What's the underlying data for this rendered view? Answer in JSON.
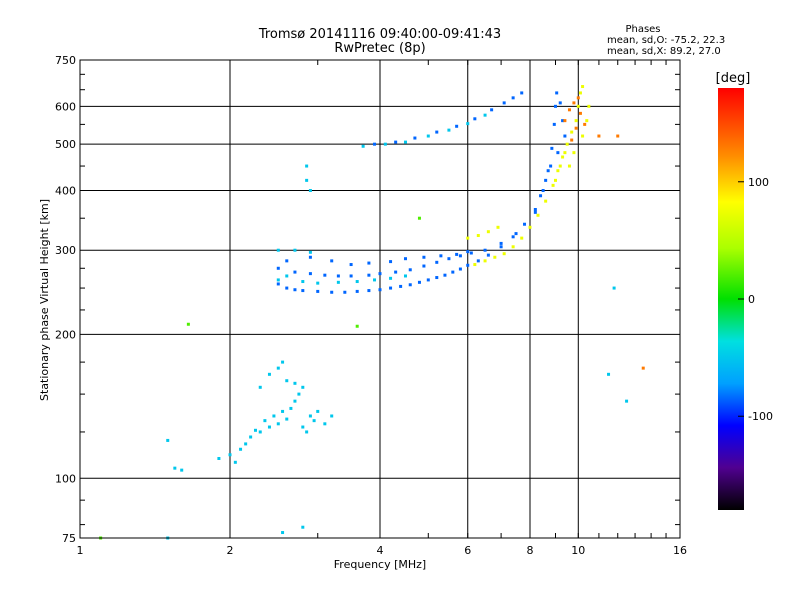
{
  "chart_data": {
    "type": "scatter",
    "title": "Tromsø 20141116 09:40:00-09:41:43",
    "subtitle": "RwPretec (8p)",
    "xlabel": "Frequency [MHz]",
    "ylabel": "Stationary phase Virtual Height [km]",
    "x_scale": "log",
    "y_scale": "log",
    "xlim": [
      1,
      16
    ],
    "ylim": [
      75,
      750
    ],
    "x_ticks": [
      1,
      2,
      4,
      6,
      8,
      10,
      16
    ],
    "x_tick_labels": [
      "1",
      "2",
      "4",
      "6",
      "8",
      "10",
      "16"
    ],
    "y_ticks": [
      75,
      100,
      200,
      300,
      400,
      500,
      600,
      750
    ],
    "y_tick_labels": [
      "75",
      "100",
      "200",
      "300",
      "400",
      "500",
      "600",
      "750"
    ],
    "grid": true,
    "phase_box": {
      "heading": "Phases",
      "line_o": "mean, sd,O: -75.2, 22.3",
      "line_x": "mean, sd,X:  89.2, 27.0"
    },
    "colorbar": {
      "label": "[deg]",
      "range": [
        -180,
        180
      ],
      "ticks": [
        100,
        0,
        -100
      ],
      "tick_labels": [
        "100",
        "0",
        "-100"
      ],
      "colormap": "rainbow"
    },
    "series": [
      {
        "phase_group": "O-mode",
        "color_value": -85,
        "points": [
          [
            2.5,
            255
          ],
          [
            2.6,
            250
          ],
          [
            2.7,
            248
          ],
          [
            2.8,
            247
          ],
          [
            3.0,
            246
          ],
          [
            3.2,
            245
          ],
          [
            3.4,
            245
          ],
          [
            3.6,
            246
          ],
          [
            3.8,
            247
          ],
          [
            4.0,
            248
          ],
          [
            4.2,
            250
          ],
          [
            4.4,
            252
          ],
          [
            4.6,
            254
          ],
          [
            4.8,
            257
          ],
          [
            5.0,
            260
          ],
          [
            5.2,
            263
          ],
          [
            5.4,
            266
          ],
          [
            5.6,
            270
          ],
          [
            5.8,
            274
          ],
          [
            6.0,
            279
          ],
          [
            6.3,
            285
          ],
          [
            6.6,
            293
          ],
          [
            7.0,
            305
          ],
          [
            7.4,
            320
          ],
          [
            7.8,
            340
          ],
          [
            8.2,
            365
          ],
          [
            8.5,
            400
          ],
          [
            8.7,
            440
          ],
          [
            8.85,
            490
          ],
          [
            8.95,
            550
          ],
          [
            9.0,
            600
          ],
          [
            9.05,
            640
          ],
          [
            2.5,
            275
          ],
          [
            2.7,
            270
          ],
          [
            2.9,
            268
          ],
          [
            3.1,
            266
          ],
          [
            3.3,
            265
          ],
          [
            3.5,
            265
          ],
          [
            3.8,
            266
          ],
          [
            4.0,
            268
          ],
          [
            4.3,
            270
          ],
          [
            4.6,
            273
          ],
          [
            4.9,
            278
          ],
          [
            5.2,
            283
          ],
          [
            5.5,
            288
          ],
          [
            5.8,
            292
          ],
          [
            6.1,
            296
          ],
          [
            6.5,
            300
          ],
          [
            7.0,
            310
          ],
          [
            7.5,
            325
          ],
          [
            2.6,
            285
          ],
          [
            2.9,
            290
          ],
          [
            3.2,
            285
          ],
          [
            3.5,
            280
          ],
          [
            3.8,
            282
          ],
          [
            4.2,
            284
          ],
          [
            4.5,
            288
          ],
          [
            4.9,
            290
          ],
          [
            5.3,
            292
          ],
          [
            5.7,
            294
          ],
          [
            6.0,
            298
          ],
          [
            3.9,
            500
          ],
          [
            4.3,
            505
          ],
          [
            4.7,
            515
          ],
          [
            5.2,
            530
          ],
          [
            5.7,
            545
          ],
          [
            6.2,
            565
          ],
          [
            6.7,
            590
          ],
          [
            7.1,
            610
          ],
          [
            7.4,
            625
          ],
          [
            7.7,
            640
          ],
          [
            9.2,
            610
          ],
          [
            9.3,
            560
          ],
          [
            9.4,
            520
          ],
          [
            9.1,
            480
          ],
          [
            8.8,
            450
          ],
          [
            8.6,
            420
          ],
          [
            8.4,
            390
          ],
          [
            8.2,
            360
          ]
        ]
      },
      {
        "phase_group": "O-mode-light",
        "color_value": -50,
        "points": [
          [
            2.5,
            260
          ],
          [
            2.6,
            265
          ],
          [
            2.8,
            258
          ],
          [
            3.0,
            256
          ],
          [
            3.3,
            257
          ],
          [
            3.6,
            258
          ],
          [
            3.9,
            260
          ],
          [
            4.2,
            262
          ],
          [
            4.5,
            265
          ],
          [
            2.5,
            300
          ],
          [
            2.7,
            300
          ],
          [
            2.9,
            297
          ],
          [
            3.7,
            495
          ],
          [
            4.1,
            500
          ],
          [
            4.5,
            505
          ],
          [
            5.0,
            520
          ],
          [
            5.5,
            535
          ],
          [
            6.0,
            552
          ],
          [
            6.5,
            575
          ],
          [
            2.85,
            420
          ],
          [
            2.9,
            400
          ],
          [
            1.5,
            120
          ],
          [
            1.55,
            105
          ],
          [
            1.6,
            104
          ],
          [
            1.9,
            110
          ],
          [
            2.0,
            112
          ],
          [
            2.05,
            108
          ],
          [
            2.1,
            115
          ],
          [
            2.15,
            118
          ],
          [
            2.2,
            122
          ],
          [
            2.25,
            126
          ],
          [
            2.3,
            125
          ],
          [
            2.35,
            132
          ],
          [
            2.4,
            128
          ],
          [
            2.45,
            135
          ],
          [
            2.5,
            130
          ],
          [
            2.55,
            138
          ],
          [
            2.6,
            133
          ],
          [
            2.65,
            140
          ],
          [
            2.7,
            145
          ],
          [
            2.75,
            150
          ],
          [
            2.8,
            128
          ],
          [
            2.85,
            125
          ],
          [
            2.9,
            135
          ],
          [
            2.95,
            132
          ],
          [
            3.0,
            138
          ],
          [
            3.1,
            130
          ],
          [
            3.2,
            135
          ],
          [
            2.3,
            155
          ],
          [
            2.4,
            165
          ],
          [
            2.5,
            170
          ],
          [
            2.6,
            160
          ],
          [
            2.7,
            158
          ],
          [
            2.8,
            155
          ],
          [
            2.55,
            175
          ],
          [
            1.5,
            75
          ],
          [
            2.55,
            77
          ],
          [
            2.8,
            79
          ],
          [
            2.85,
            450
          ],
          [
            11.8,
            250
          ],
          [
            12.5,
            145
          ],
          [
            11.5,
            165
          ]
        ]
      },
      {
        "phase_group": "X-mode",
        "color_value": 75,
        "points": [
          [
            6.2,
            280
          ],
          [
            6.5,
            285
          ],
          [
            6.8,
            290
          ],
          [
            7.1,
            295
          ],
          [
            7.4,
            305
          ],
          [
            7.7,
            318
          ],
          [
            8.0,
            335
          ],
          [
            8.3,
            355
          ],
          [
            8.6,
            380
          ],
          [
            8.9,
            410
          ],
          [
            9.1,
            440
          ],
          [
            9.3,
            470
          ],
          [
            9.5,
            500
          ],
          [
            9.7,
            530
          ],
          [
            9.9,
            560
          ],
          [
            10.0,
            600
          ],
          [
            10.1,
            640
          ],
          [
            10.2,
            660
          ],
          [
            6.0,
            318
          ],
          [
            6.3,
            322
          ],
          [
            6.6,
            328
          ],
          [
            6.9,
            335
          ],
          [
            9.6,
            450
          ],
          [
            9.8,
            480
          ],
          [
            10.2,
            520
          ],
          [
            10.4,
            560
          ],
          [
            10.5,
            600
          ],
          [
            9.0,
            420
          ],
          [
            9.2,
            450
          ],
          [
            9.4,
            480
          ]
        ]
      },
      {
        "phase_group": "X-mode-warm",
        "color_value": 130,
        "points": [
          [
            9.4,
            560
          ],
          [
            9.6,
            590
          ],
          [
            9.8,
            610
          ],
          [
            10.0,
            625
          ],
          [
            10.1,
            580
          ],
          [
            9.9,
            540
          ],
          [
            9.7,
            510
          ],
          [
            10.3,
            550
          ],
          [
            11.0,
            520
          ],
          [
            13.5,
            170
          ],
          [
            12.0,
            520
          ]
        ]
      },
      {
        "phase_group": "scattered",
        "color_value": 20,
        "points": [
          [
            1.65,
            210
          ],
          [
            1.1,
            75
          ],
          [
            4.8,
            350
          ],
          [
            3.6,
            208
          ]
        ]
      }
    ]
  }
}
